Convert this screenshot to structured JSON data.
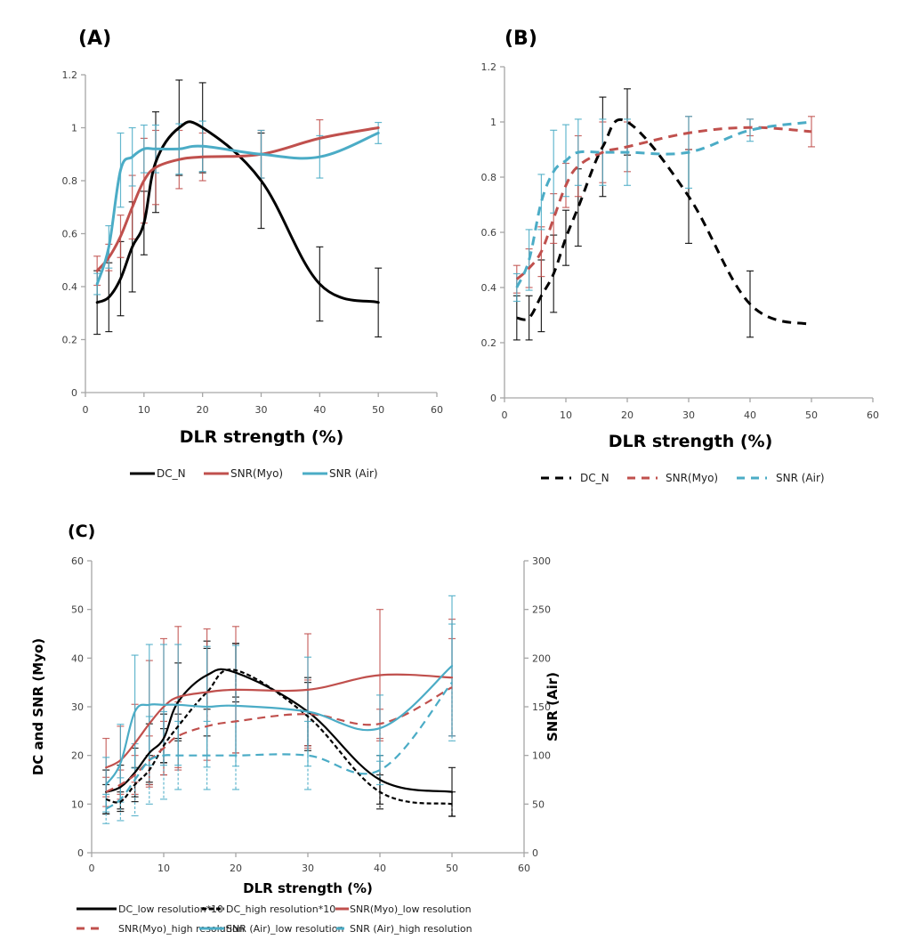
{
  "colors": {
    "dc": "#000000",
    "myo": "#C0504D",
    "air": "#4BACC6"
  },
  "chart_data": [
    {
      "id": "A",
      "panel_label": "(A)",
      "type": "line",
      "xlabel": "DLR strength (%)",
      "ylabel": "",
      "xlim": [
        0,
        60
      ],
      "ylim": [
        0,
        1.2
      ],
      "xticks": [
        "0",
        "10",
        "20",
        "30",
        "40",
        "50",
        "60"
      ],
      "yticks": [
        "0",
        "0.2",
        "0.4",
        "0.6",
        "0.8",
        "1",
        "1.2"
      ],
      "grid": false,
      "legend_position": "bottom",
      "x": [
        2,
        4,
        6,
        8,
        10,
        12,
        16,
        20,
        30,
        40,
        50
      ],
      "series": [
        {
          "name": "DC_N",
          "color_key": "dc",
          "dashed": false,
          "values": [
            0.34,
            0.36,
            0.43,
            0.55,
            0.64,
            0.87,
            1.0,
            1.0,
            0.8,
            0.41,
            0.34
          ],
          "errors": [
            0.12,
            0.13,
            0.14,
            0.17,
            0.12,
            0.19,
            0.18,
            0.17,
            0.18,
            0.14,
            0.13
          ]
        },
        {
          "name": "SNR(Myo)",
          "color_key": "myo",
          "dashed": false,
          "values": [
            0.46,
            0.51,
            0.59,
            0.7,
            0.8,
            0.85,
            0.88,
            0.89,
            0.9,
            0.96,
            1.0
          ],
          "errors": [
            0.055,
            0.05,
            0.08,
            0.12,
            0.16,
            0.14,
            0.11,
            0.09,
            0.09,
            0.07,
            0.0
          ]
        },
        {
          "name": "SNR (Air)",
          "color_key": "air",
          "dashed": false,
          "values": [
            0.41,
            0.55,
            0.84,
            0.89,
            0.92,
            0.92,
            0.92,
            0.93,
            0.9,
            0.89,
            0.98
          ],
          "errors": [
            0.04,
            0.08,
            0.14,
            0.11,
            0.09,
            0.09,
            0.095,
            0.095,
            0.09,
            0.08,
            0.04
          ]
        }
      ]
    },
    {
      "id": "B",
      "panel_label": "(B)",
      "type": "line",
      "xlabel": "DLR strength (%)",
      "ylabel": "",
      "xlim": [
        0,
        60
      ],
      "ylim": [
        0,
        1.2
      ],
      "xticks": [
        "0",
        "10",
        "20",
        "30",
        "40",
        "50",
        "60"
      ],
      "yticks": [
        "0",
        "0.2",
        "0.4",
        "0.6",
        "0.8",
        "1",
        "1.2"
      ],
      "grid": false,
      "legend_position": "bottom",
      "x": [
        2,
        4,
        6,
        8,
        10,
        12,
        16,
        20,
        30,
        40,
        50
      ],
      "series": [
        {
          "name": "DC_N",
          "color_key": "dc",
          "dashed": true,
          "values": [
            0.29,
            0.29,
            0.37,
            0.45,
            0.58,
            0.69,
            0.91,
            1.0,
            0.73,
            0.34,
            0.265
          ],
          "errors": [
            0.08,
            0.08,
            0.13,
            0.14,
            0.1,
            0.14,
            0.18,
            0.12,
            0.17,
            0.12,
            0.0
          ]
        },
        {
          "name": "SNR(Myo)",
          "color_key": "myo",
          "dashed": true,
          "values": [
            0.43,
            0.47,
            0.53,
            0.65,
            0.77,
            0.84,
            0.89,
            0.91,
            0.96,
            0.98,
            0.965
          ],
          "errors": [
            0.05,
            0.07,
            0.09,
            0.09,
            0.08,
            0.11,
            0.11,
            0.09,
            0.06,
            0.03,
            0.055
          ]
        },
        {
          "name": "SNR (Air)",
          "color_key": "air",
          "dashed": true,
          "values": [
            0.4,
            0.5,
            0.71,
            0.82,
            0.86,
            0.89,
            0.89,
            0.89,
            0.89,
            0.97,
            1.0
          ],
          "errors": [
            0.05,
            0.11,
            0.1,
            0.15,
            0.13,
            0.12,
            0.12,
            0.12,
            0.13,
            0.04,
            0.0
          ]
        }
      ]
    },
    {
      "id": "C",
      "panel_label": "(C)",
      "type": "line",
      "xlabel": "DLR strength (%)",
      "ylabel": "DC and SNR (Myo)",
      "y2label": "SNR (Air)",
      "xlim": [
        0,
        60
      ],
      "ylim": [
        0,
        60
      ],
      "y2lim": [
        0,
        300
      ],
      "xticks": [
        "0",
        "10",
        "20",
        "30",
        "40",
        "50",
        "60"
      ],
      "yticks": [
        "0",
        "10",
        "20",
        "30",
        "40",
        "50",
        "60"
      ],
      "y2ticks": [
        "0",
        "50",
        "100",
        "150",
        "200",
        "250",
        "300"
      ],
      "grid": false,
      "legend_position": "bottom",
      "x": [
        2,
        4,
        6,
        8,
        10,
        12,
        16,
        20,
        30,
        40,
        50
      ],
      "series": [
        {
          "name": "DC_low resolution*10",
          "color_key": "dc",
          "dashed": false,
          "axis": "left",
          "values": [
            12.5,
            13.5,
            16.5,
            20.5,
            23.5,
            31,
            36.5,
            37,
            29,
            15,
            12.5
          ],
          "errors": [
            4.5,
            4.5,
            5,
            6,
            5,
            8,
            7,
            6,
            7,
            5,
            5
          ]
        },
        {
          "name": "DC_high resolution*10",
          "color_key": "dc",
          "dashed": true,
          "dash_style": "short",
          "axis": "left",
          "values": [
            11,
            10.5,
            14,
            17,
            22,
            26,
            33,
            37.5,
            28,
            12.5,
            10
          ],
          "errors": [
            3,
            2,
            3.5,
            3,
            3.5,
            2.5,
            9,
            5.5,
            7,
            3.5,
            2.5
          ]
        },
        {
          "name": "SNR(Myo)_low resolution",
          "color_key": "myo",
          "dashed": false,
          "axis": "left",
          "values": [
            17.5,
            19,
            22.5,
            26.5,
            30,
            32,
            33,
            33.5,
            33.5,
            36.5,
            36
          ],
          "errors": [
            6,
            7,
            8,
            13,
            14,
            14.5,
            13,
            13,
            11.5,
            13.5,
            12
          ]
        },
        {
          "name": "SNR(Myo)_high resolution",
          "color_key": "myo",
          "dashed": true,
          "axis": "left",
          "values": [
            12.5,
            14,
            16,
            19,
            21.5,
            24,
            26,
            27,
            28.5,
            26.5,
            34
          ],
          "errors": [
            3,
            3,
            4,
            5,
            5.5,
            7,
            7,
            6.5,
            7,
            3,
            10
          ]
        },
        {
          "name": "SNR (Air)_low resolution",
          "color_key": "air",
          "dashed": false,
          "axis": "right",
          "values": [
            70,
            92,
            145,
            152,
            152,
            152,
            150,
            151,
            145,
            128,
            192
          ],
          "errors": [
            28,
            40,
            58,
            62,
            62,
            62,
            62,
            62,
            56,
            34,
            72
          ]
        },
        {
          "name": "SNR (Air)_high resolution",
          "color_key": "air",
          "dashed": true,
          "axis": "right",
          "values": [
            45,
            55,
            75,
            95,
            100,
            100,
            100,
            100,
            100,
            85,
            175
          ],
          "errors": [
            15,
            22,
            37,
            45,
            45,
            35,
            35,
            35,
            35,
            15,
            60
          ]
        }
      ]
    }
  ]
}
